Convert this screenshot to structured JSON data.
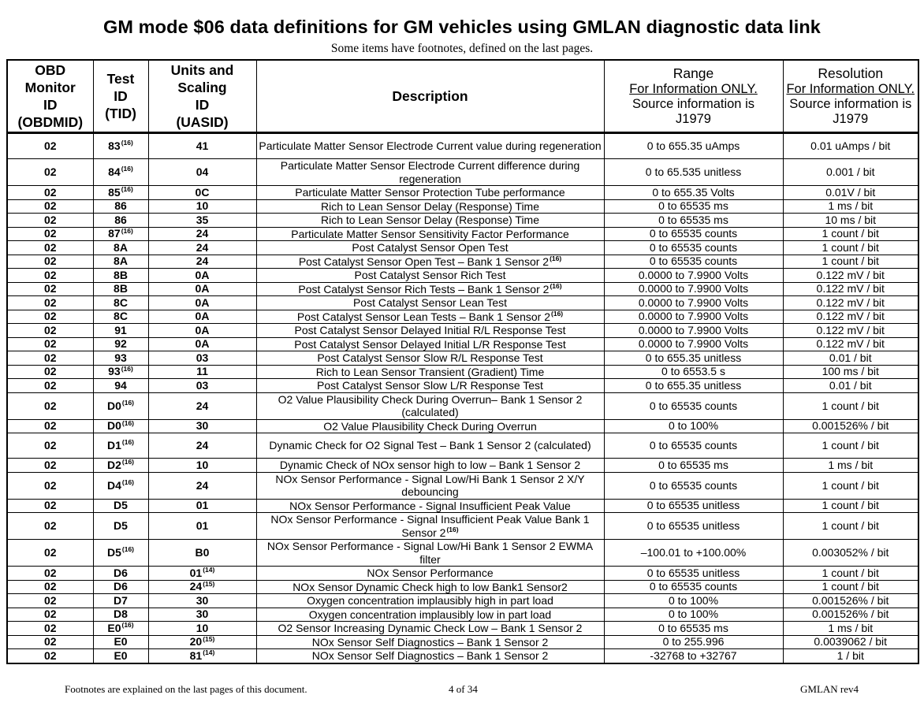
{
  "title": "GM mode $06 data definitions for GM vehicles using GMLAN diagnostic data link",
  "subtitle": "Some items have footnotes, defined on the last pages.",
  "headers": {
    "obdmid": [
      "OBD",
      "Monitor",
      "ID",
      "(OBDMID)"
    ],
    "tid": [
      "Test",
      "ID",
      "(TID)"
    ],
    "uasid": [
      "Units and",
      "Scaling",
      "ID",
      "(UASID)"
    ],
    "description": "Description",
    "range": [
      "Range",
      "For Information ONLY.",
      "Source information is",
      "J1979"
    ],
    "resolution": [
      "Resolution",
      "For Information ONLY.",
      "Source information is",
      "J1979"
    ]
  },
  "rows": [
    {
      "obdmid": "02",
      "tid": "83",
      "tid_fn": "(16)",
      "uasid": "41",
      "uasid_fn": "",
      "desc": "Particulate Matter Sensor Electrode Current value during regeneration",
      "desc_fn": "",
      "range": "0 to 655.35 uAmps",
      "resolution": "0.01 uAmps / bit",
      "tall": true
    },
    {
      "obdmid": "02",
      "tid": "84",
      "tid_fn": "(16)",
      "uasid": "04",
      "uasid_fn": "",
      "desc": "Particulate Matter Sensor Electrode Current difference during regeneration",
      "desc_fn": "",
      "range": "0 to 65.535 unitless",
      "resolution": "0.001 / bit",
      "tall": true
    },
    {
      "obdmid": "02",
      "tid": "85",
      "tid_fn": "(16)",
      "uasid": "0C",
      "uasid_fn": "",
      "desc": "Particulate Matter Sensor Protection Tube performance",
      "desc_fn": "",
      "range": "0 to 655.35 Volts",
      "resolution": "0.01V / bit",
      "tall": false
    },
    {
      "obdmid": "02",
      "tid": "86",
      "tid_fn": "",
      "uasid": "10",
      "uasid_fn": "",
      "desc": "Rich to Lean Sensor Delay (Response) Time",
      "desc_fn": "",
      "range": "0 to 65535 ms",
      "resolution": "1 ms / bit",
      "tall": false
    },
    {
      "obdmid": "02",
      "tid": "86",
      "tid_fn": "",
      "uasid": "35",
      "uasid_fn": "",
      "desc": "Rich to Lean Sensor Delay (Response) Time",
      "desc_fn": "",
      "range": "0 to 65535 ms",
      "resolution": "10 ms / bit",
      "tall": false
    },
    {
      "obdmid": "02",
      "tid": "87",
      "tid_fn": "(16)",
      "uasid": "24",
      "uasid_fn": "",
      "desc": "Particulate Matter Sensor Sensitivity Factor Performance",
      "desc_fn": "",
      "range": "0 to 65535 counts",
      "resolution": "1 count / bit",
      "tall": false
    },
    {
      "obdmid": "02",
      "tid": "8A",
      "tid_fn": "",
      "uasid": "24",
      "uasid_fn": "",
      "desc": "Post Catalyst Sensor Open Test",
      "desc_fn": "",
      "range": "0 to 65535 counts",
      "resolution": "1 count / bit",
      "tall": false
    },
    {
      "obdmid": "02",
      "tid": "8A",
      "tid_fn": "",
      "uasid": "24",
      "uasid_fn": "",
      "desc": "Post Catalyst Sensor Open Test – Bank 1 Sensor 2",
      "desc_fn": "(16)",
      "range": "0 to 65535 counts",
      "resolution": "1 count / bit",
      "tall": false
    },
    {
      "obdmid": "02",
      "tid": "8B",
      "tid_fn": "",
      "uasid": "0A",
      "uasid_fn": "",
      "desc": "Post Catalyst Sensor Rich Test",
      "desc_fn": "",
      "range": "0.0000 to 7.9900 Volts",
      "resolution": "0.122 mV / bit",
      "tall": false
    },
    {
      "obdmid": "02",
      "tid": "8B",
      "tid_fn": "",
      "uasid": "0A",
      "uasid_fn": "",
      "desc": "Post Catalyst Sensor Rich Tests – Bank 1 Sensor 2",
      "desc_fn": "(16)",
      "range": "0.0000 to 7.9900 Volts",
      "resolution": "0.122 mV / bit",
      "tall": false
    },
    {
      "obdmid": "02",
      "tid": "8C",
      "tid_fn": "",
      "uasid": "0A",
      "uasid_fn": "",
      "desc": "Post Catalyst Sensor Lean Test",
      "desc_fn": "",
      "range": "0.0000 to 7.9900 Volts",
      "resolution": "0.122 mV / bit",
      "tall": false
    },
    {
      "obdmid": "02",
      "tid": "8C",
      "tid_fn": "",
      "uasid": "0A",
      "uasid_fn": "",
      "desc": "Post Catalyst Sensor Lean Tests – Bank 1 Sensor 2",
      "desc_fn": "(16)",
      "range": "0.0000 to 7.9900 Volts",
      "resolution": "0.122 mV / bit",
      "tall": false
    },
    {
      "obdmid": "02",
      "tid": "91",
      "tid_fn": "",
      "uasid": "0A",
      "uasid_fn": "",
      "desc": "Post Catalyst Sensor Delayed Initial R/L Response Test",
      "desc_fn": "",
      "range": "0.0000 to 7.9900 Volts",
      "resolution": "0.122 mV / bit",
      "tall": false
    },
    {
      "obdmid": "02",
      "tid": "92",
      "tid_fn": "",
      "uasid": "0A",
      "uasid_fn": "",
      "desc": "Post Catalyst Sensor Delayed Initial L/R Response Test",
      "desc_fn": "",
      "range": "0.0000 to 7.9900 Volts",
      "resolution": "0.122 mV / bit",
      "tall": false
    },
    {
      "obdmid": "02",
      "tid": "93",
      "tid_fn": "",
      "uasid": "03",
      "uasid_fn": "",
      "desc": "Post Catalyst Sensor Slow R/L Response Test",
      "desc_fn": "",
      "range": "0 to 655.35 unitless",
      "resolution": "0.01 / bit",
      "tall": false
    },
    {
      "obdmid": "02",
      "tid": "93",
      "tid_fn": "(16)",
      "uasid": "11",
      "uasid_fn": "",
      "desc": "Rich to Lean Sensor Transient (Gradient) Time",
      "desc_fn": "",
      "range": "0 to 6553.5 s",
      "resolution": "100 ms / bit",
      "tall": false
    },
    {
      "obdmid": "02",
      "tid": "94",
      "tid_fn": "",
      "uasid": "03",
      "uasid_fn": "",
      "desc": "Post Catalyst Sensor Slow L/R Response Test",
      "desc_fn": "",
      "range": "0 to 655.35 unitless",
      "resolution": "0.01 / bit",
      "tall": false
    },
    {
      "obdmid": "02",
      "tid": "D0",
      "tid_fn": "(16)",
      "uasid": "24",
      "uasid_fn": "",
      "desc": "O2 Value Plausibility Check During Overrun– Bank 1 Sensor 2 (calculated)",
      "desc_fn": "",
      "range": "0 to 65535 counts",
      "resolution": "1 count / bit",
      "tall": true
    },
    {
      "obdmid": "02",
      "tid": "D0",
      "tid_fn": "(16)",
      "uasid": "30",
      "uasid_fn": "",
      "desc": "O2 Value Plausibility Check During Overrun",
      "desc_fn": "",
      "range": "0 to 100%",
      "resolution": "0.001526% / bit",
      "tall": false
    },
    {
      "obdmid": "02",
      "tid": "D1",
      "tid_fn": "(16)",
      "uasid": "24",
      "uasid_fn": "",
      "desc": "Dynamic Check for O2 Signal Test   – Bank 1 Sensor 2 (calculated)",
      "desc_fn": "",
      "range": "0 to 65535 counts",
      "resolution": "1 count / bit",
      "tall": true
    },
    {
      "obdmid": "02",
      "tid": "D2",
      "tid_fn": "(16)",
      "uasid": "10",
      "uasid_fn": "",
      "desc": "Dynamic Check of NOx sensor high to low – Bank 1 Sensor 2",
      "desc_fn": "",
      "range": "0 to 65535 ms",
      "resolution": "1 ms / bit",
      "tall": false
    },
    {
      "obdmid": "02",
      "tid": "D4",
      "tid_fn": "(16)",
      "uasid": "24",
      "uasid_fn": "",
      "desc": "NOx Sensor Performance - Signal Low/Hi Bank 1 Sensor 2 X/Y debouncing",
      "desc_fn": "",
      "range": "0 to 65535 counts",
      "resolution": "1 count / bit",
      "tall": true
    },
    {
      "obdmid": "02",
      "tid": "D5",
      "tid_fn": "",
      "uasid": "01",
      "uasid_fn": "",
      "desc": "NOx Sensor Performance - Signal Insufficient Peak Value",
      "desc_fn": "",
      "range": "0 to 65535 unitless",
      "resolution": "1 count / bit",
      "tall": false
    },
    {
      "obdmid": "02",
      "tid": "D5",
      "tid_fn": "",
      "uasid": "01",
      "uasid_fn": "",
      "desc": "NOx Sensor Performance - Signal Insufficient Peak Value Bank 1 Sensor 2",
      "desc_fn": "(16)",
      "range": "0 to 65535 unitless",
      "resolution": "1 count / bit",
      "tall": true
    },
    {
      "obdmid": "02",
      "tid": "D5",
      "tid_fn": "(16)",
      "uasid": "B0",
      "uasid_fn": "",
      "desc": "NOx Sensor Performance - Signal Low/Hi Bank 1 Sensor 2 EWMA filter",
      "desc_fn": "",
      "range": "–100.01 to +100.00%",
      "resolution": "0.003052% / bit",
      "tall": true
    },
    {
      "obdmid": "02",
      "tid": "D6",
      "tid_fn": "",
      "uasid": "01",
      "uasid_fn": "(14)",
      "desc": "NOx Sensor Performance",
      "desc_fn": "",
      "range": "0 to 65535 unitless",
      "resolution": "1 count / bit",
      "tall": false
    },
    {
      "obdmid": "02",
      "tid": "D6",
      "tid_fn": "",
      "uasid": "24",
      "uasid_fn": "(15)",
      "desc": "NOx Sensor Dynamic Check high to low Bank1 Sensor2",
      "desc_fn": "",
      "range": "0 to 65535 counts",
      "resolution": "1 count / bit",
      "tall": false
    },
    {
      "obdmid": "02",
      "tid": "D7",
      "tid_fn": "",
      "uasid": "30",
      "uasid_fn": "",
      "desc": "Oxygen concentration implausibly high in part load",
      "desc_fn": "",
      "range": "0 to 100%",
      "resolution": "0.001526% / bit",
      "tall": false
    },
    {
      "obdmid": "02",
      "tid": "D8",
      "tid_fn": "",
      "uasid": "30",
      "uasid_fn": "",
      "desc": "Oxygen concentration implausibly low in part load",
      "desc_fn": "",
      "range": "0 to 100%",
      "resolution": "0.001526% / bit",
      "tall": false
    },
    {
      "obdmid": "02",
      "tid": "E0",
      "tid_fn": "(16)",
      "uasid": "10",
      "uasid_fn": "",
      "desc": "O2 Sensor  Increasing Dynamic Check Low – Bank 1 Sensor 2",
      "desc_fn": "",
      "range": "0 to 65535 ms",
      "resolution": "1 ms / bit",
      "tall": false
    },
    {
      "obdmid": "02",
      "tid": "E0",
      "tid_fn": "",
      "uasid": "20",
      "uasid_fn": "(15)",
      "desc": "NOx Sensor Self Diagnostics – Bank 1 Sensor 2",
      "desc_fn": "",
      "range": "0 to 255.996",
      "resolution": "0.0039062 / bit",
      "tall": false
    },
    {
      "obdmid": "02",
      "tid": "E0",
      "tid_fn": "",
      "uasid": "81",
      "uasid_fn": "(14)",
      "desc": "NOx Sensor Self Diagnostics – Bank 1 Sensor 2",
      "desc_fn": "",
      "range": "-32768 to +32767",
      "resolution": "1 / bit",
      "tall": false
    }
  ],
  "footer": {
    "note": "Footnotes are explained on the last pages of this document.",
    "page": "4 of 34",
    "doc": "GMLAN  rev4"
  }
}
